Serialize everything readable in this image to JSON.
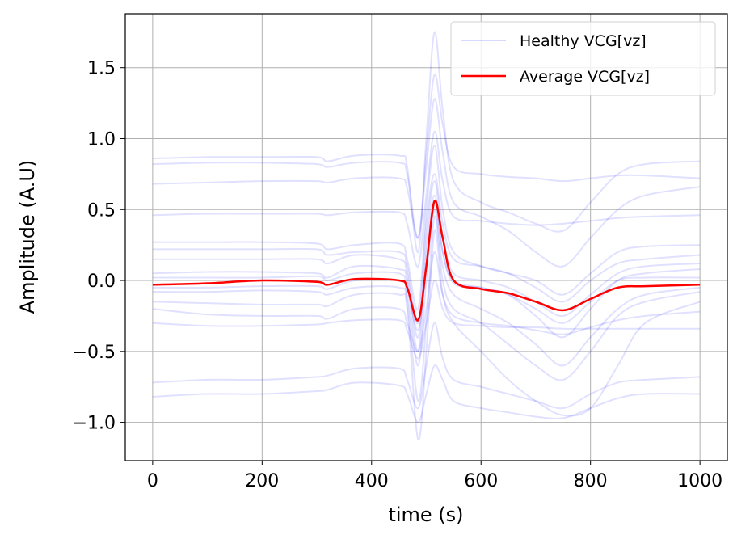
{
  "chart_data": {
    "type": "line",
    "title": "",
    "xlabel": "time (s)",
    "ylabel": "Amplitude (A.U)",
    "xlim": [
      -50,
      1050
    ],
    "ylim": [
      -1.27,
      1.88
    ],
    "xticks": [
      0,
      200,
      400,
      600,
      800,
      1000
    ],
    "xtick_labels": [
      "0",
      "200",
      "400",
      "600",
      "800",
      "1000"
    ],
    "yticks": [
      -1.0,
      -0.5,
      0.0,
      0.5,
      1.0,
      1.5
    ],
    "ytick_labels": [
      "−1.0",
      "−0.5",
      "0.0",
      "0.5",
      "1.0",
      "1.5"
    ],
    "grid": true,
    "legend": {
      "placement": "top-right",
      "entries": [
        "Healthy VCG[vz]",
        "Average VCG[vz]"
      ]
    },
    "x": [
      0,
      100,
      200,
      300,
      320,
      370,
      450,
      465,
      485,
      500,
      515,
      530,
      550,
      600,
      650,
      700,
      750,
      800,
      850,
      900,
      1000
    ],
    "healthy": {
      "name": "Healthy VCG[vz]",
      "color": "#0000ff",
      "alpha": 0.12,
      "series": [
        [
          0.86,
          0.87,
          0.87,
          0.87,
          0.84,
          0.88,
          0.88,
          0.8,
          0.2,
          1.0,
          1.75,
          1.2,
          0.7,
          0.55,
          0.48,
          0.4,
          0.35,
          0.55,
          0.75,
          0.82,
          0.84
        ],
        [
          0.82,
          0.83,
          0.83,
          0.82,
          0.8,
          0.83,
          0.83,
          0.75,
          0.3,
          0.9,
          1.45,
          1.1,
          0.8,
          0.75,
          0.73,
          0.72,
          0.7,
          0.72,
          0.74,
          0.74,
          0.72
        ],
        [
          0.68,
          0.69,
          0.7,
          0.7,
          0.69,
          0.72,
          0.72,
          0.65,
          0.3,
          0.8,
          1.28,
          0.9,
          0.55,
          0.45,
          0.35,
          0.2,
          0.1,
          0.3,
          0.5,
          0.6,
          0.66
        ],
        [
          0.46,
          0.47,
          0.47,
          0.47,
          0.46,
          0.48,
          0.48,
          0.4,
          0.1,
          0.6,
          1.05,
          0.7,
          0.45,
          0.42,
          0.4,
          0.39,
          0.4,
          0.42,
          0.44,
          0.45,
          0.46
        ],
        [
          0.27,
          0.27,
          0.27,
          0.26,
          0.22,
          0.25,
          0.26,
          0.15,
          -0.2,
          0.5,
          0.95,
          0.5,
          0.2,
          0.1,
          0.05,
          0.0,
          -0.1,
          0.05,
          0.2,
          0.24,
          0.25
        ],
        [
          0.22,
          0.22,
          0.22,
          0.22,
          0.18,
          0.2,
          0.2,
          0.1,
          -0.3,
          0.4,
          0.75,
          0.4,
          0.15,
          0.1,
          0.05,
          -0.05,
          -0.15,
          0.0,
          0.12,
          0.15,
          0.18
        ],
        [
          0.15,
          0.15,
          0.15,
          0.15,
          0.12,
          0.18,
          0.15,
          0.05,
          -0.4,
          0.3,
          0.7,
          0.3,
          0.05,
          0.0,
          -0.05,
          -0.15,
          -0.25,
          -0.1,
          0.05,
          0.1,
          0.12
        ],
        [
          0.05,
          0.06,
          0.06,
          0.05,
          0.02,
          0.1,
          0.08,
          0.0,
          -0.5,
          0.2,
          0.6,
          0.2,
          0.0,
          -0.05,
          -0.1,
          -0.25,
          -0.4,
          -0.2,
          0.0,
          0.05,
          0.08
        ],
        [
          0.02,
          0.02,
          0.02,
          0.03,
          0.0,
          0.05,
          0.05,
          -0.05,
          -0.35,
          0.1,
          0.55,
          0.2,
          -0.02,
          -0.05,
          -0.1,
          -0.2,
          -0.3,
          -0.15,
          0.0,
          0.02,
          0.02
        ],
        [
          -0.05,
          -0.05,
          -0.04,
          -0.04,
          -0.06,
          0.0,
          0.0,
          -0.1,
          -0.6,
          0.0,
          0.5,
          0.1,
          -0.1,
          -0.2,
          -0.3,
          -0.45,
          -0.6,
          -0.4,
          -0.2,
          -0.1,
          -0.05
        ],
        [
          -0.08,
          -0.08,
          -0.07,
          -0.08,
          -0.1,
          -0.05,
          -0.05,
          -0.15,
          -0.85,
          -0.3,
          0.45,
          0.0,
          -0.2,
          -0.3,
          -0.45,
          -0.6,
          -0.7,
          -0.5,
          -0.25,
          -0.15,
          -0.08
        ],
        [
          -0.15,
          -0.16,
          -0.17,
          -0.17,
          -0.18,
          -0.1,
          -0.1,
          -0.2,
          -1.12,
          -0.5,
          0.35,
          -0.1,
          -0.3,
          -0.5,
          -0.7,
          -0.85,
          -0.95,
          -0.9,
          -0.6,
          -0.3,
          -0.15
        ],
        [
          -0.2,
          -0.24,
          -0.25,
          -0.25,
          -0.27,
          -0.2,
          -0.2,
          -0.3,
          -0.5,
          -0.2,
          0.2,
          -0.1,
          -0.25,
          -0.3,
          -0.32,
          -0.35,
          -0.38,
          -0.33,
          -0.28,
          -0.25,
          -0.22
        ],
        [
          -0.3,
          -0.32,
          -0.32,
          -0.31,
          -0.3,
          -0.28,
          -0.28,
          -0.35,
          -0.55,
          -0.3,
          0.0,
          -0.2,
          -0.3,
          -0.32,
          -0.33,
          -0.33,
          -0.34,
          -0.34,
          -0.34,
          -0.34,
          -0.34
        ],
        [
          -0.72,
          -0.7,
          -0.7,
          -0.68,
          -0.67,
          -0.62,
          -0.62,
          -0.7,
          -0.9,
          -0.6,
          -0.3,
          -0.55,
          -0.7,
          -0.75,
          -0.8,
          -0.85,
          -0.9,
          -0.8,
          -0.72,
          -0.7,
          -0.68
        ],
        [
          -0.82,
          -0.8,
          -0.8,
          -0.78,
          -0.77,
          -0.72,
          -0.74,
          -0.8,
          -1.0,
          -0.8,
          -0.6,
          -0.7,
          -0.85,
          -0.9,
          -0.93,
          -0.96,
          -0.97,
          -0.9,
          -0.83,
          -0.8,
          -0.8
        ]
      ]
    },
    "average": {
      "name": "Average VCG[vz]",
      "color": "#ff0000",
      "values": [
        -0.03,
        -0.02,
        0.0,
        -0.01,
        -0.03,
        0.01,
        0.0,
        -0.05,
        -0.28,
        0.1,
        0.56,
        0.3,
        0.0,
        -0.06,
        -0.09,
        -0.15,
        -0.21,
        -0.13,
        -0.05,
        -0.04,
        -0.03
      ]
    }
  }
}
